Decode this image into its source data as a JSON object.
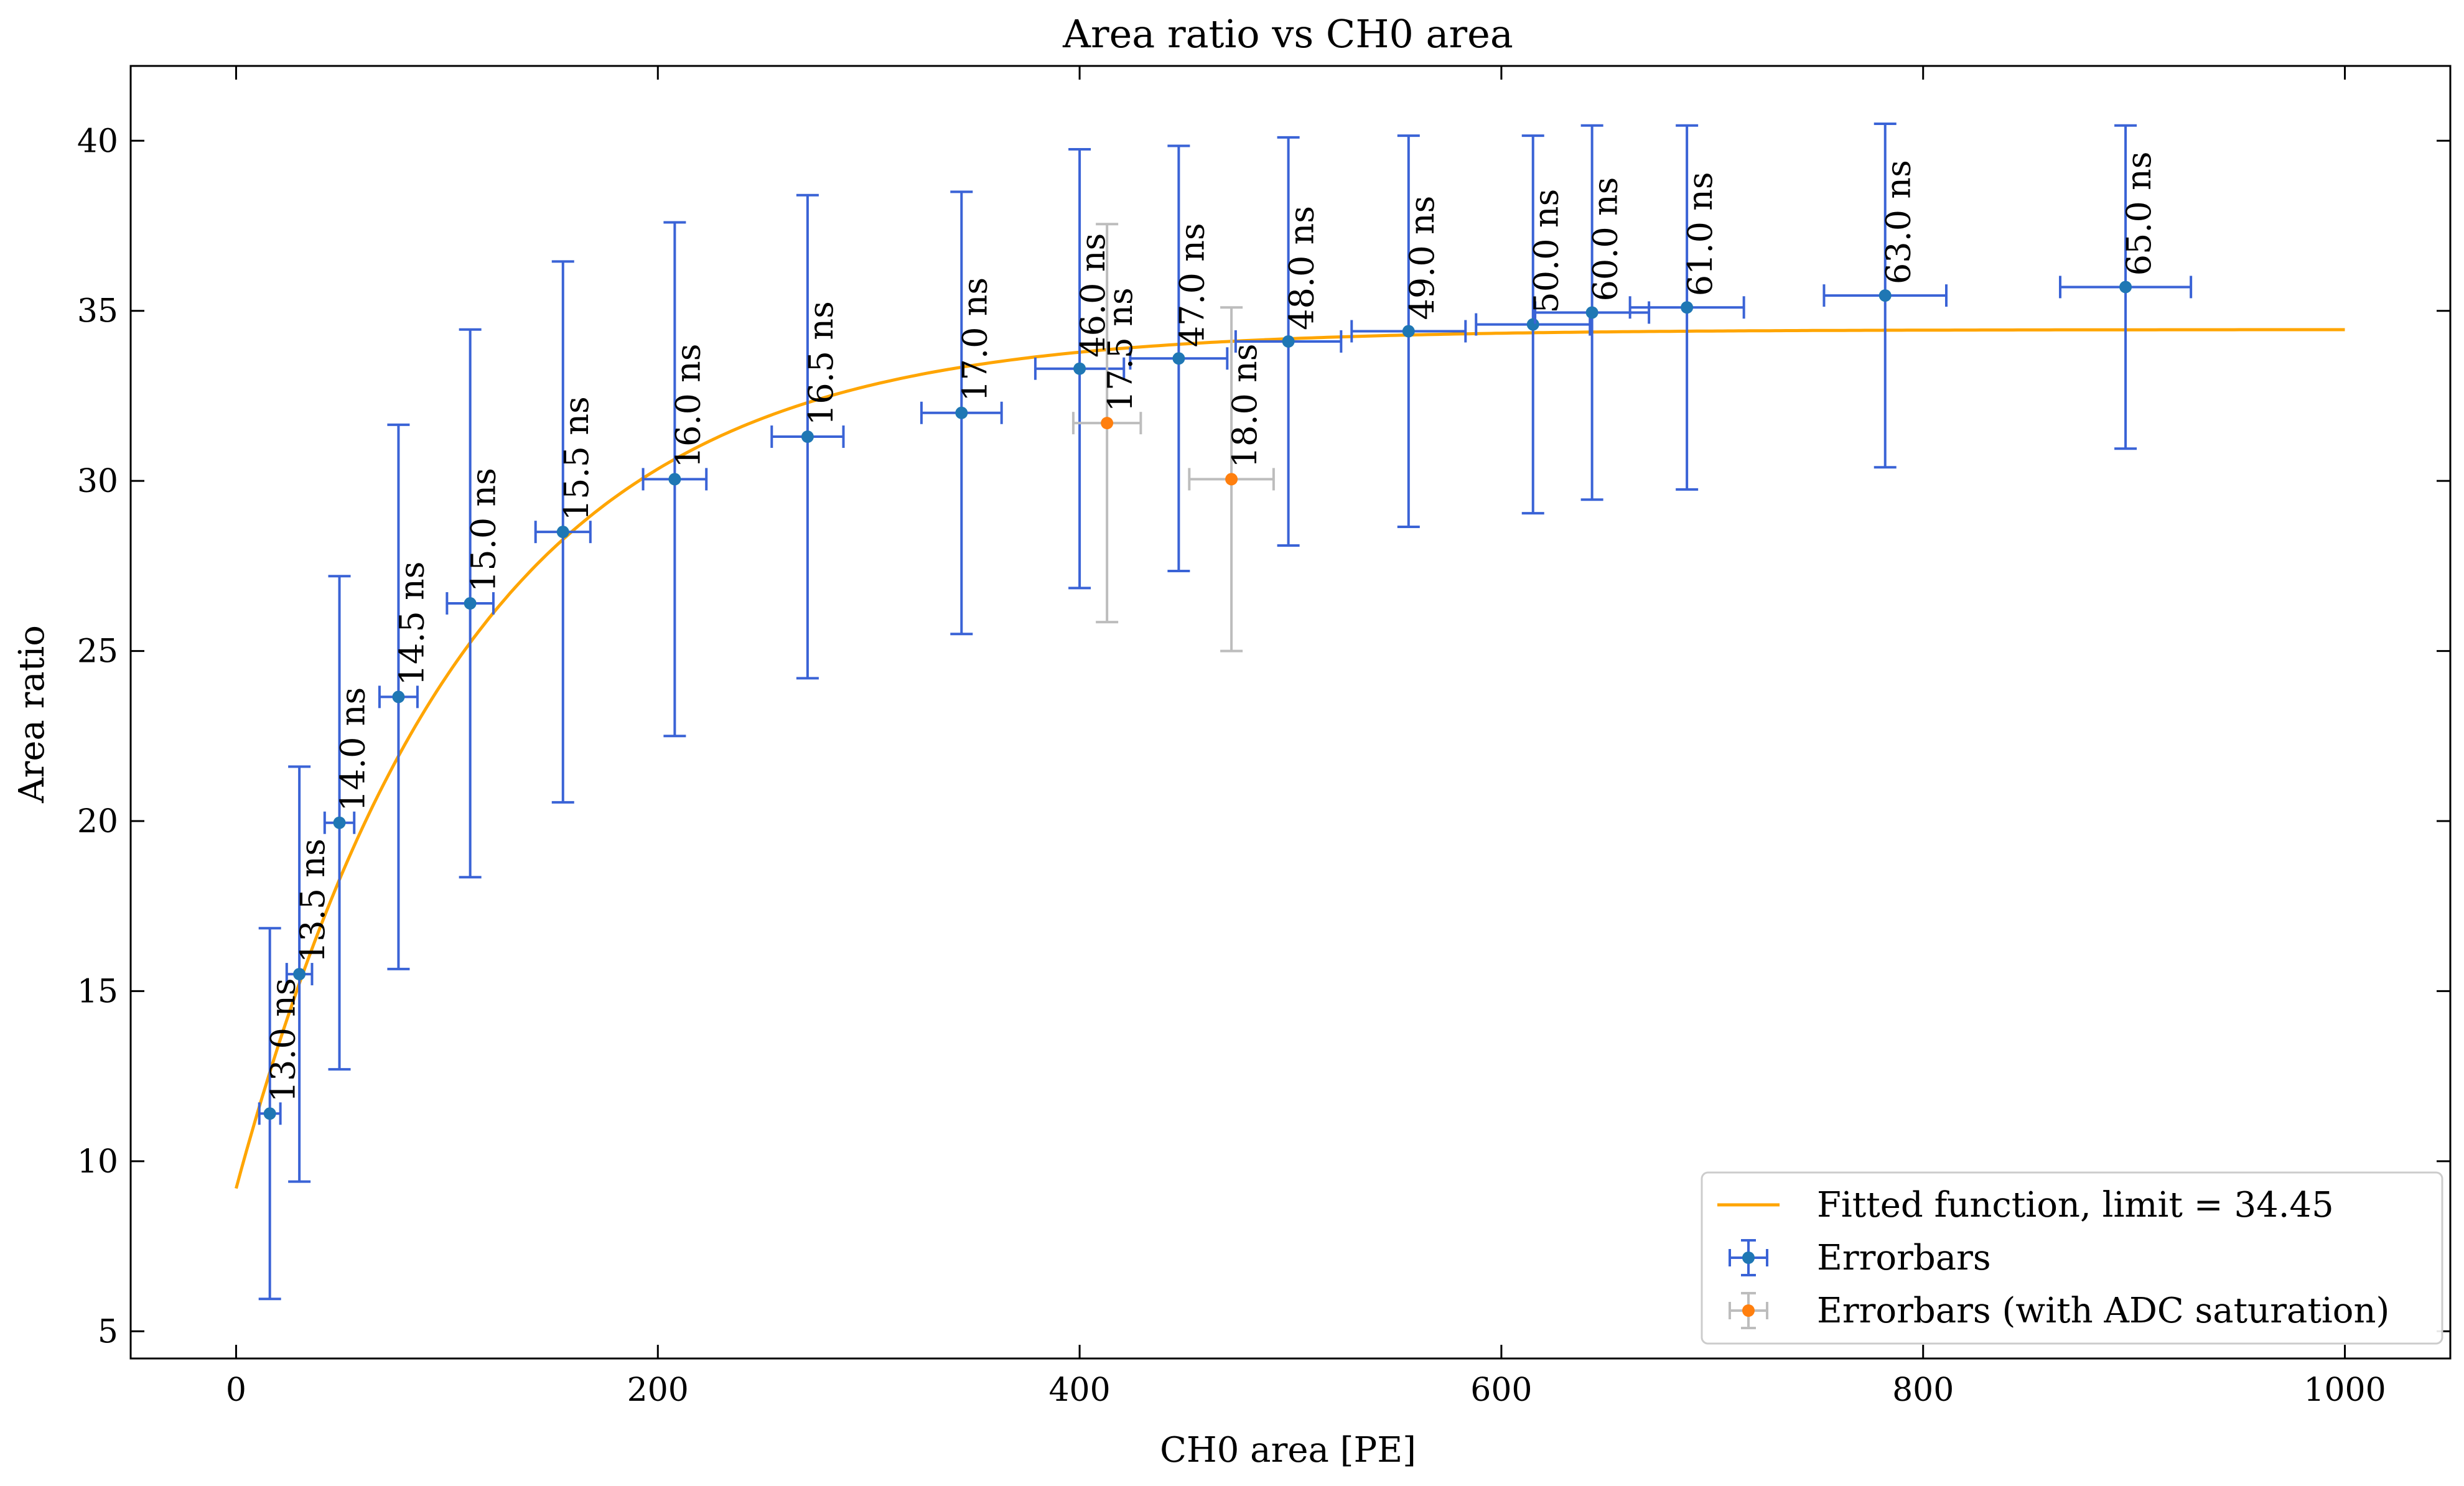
{
  "chart_data": {
    "type": "scatter",
    "title": "Area ratio vs CH0 area",
    "xlabel": "CH0 area [PE]",
    "ylabel": "Area ratio",
    "xlim": [
      -50,
      1050
    ],
    "ylim": [
      4.2,
      42.2
    ],
    "xticks": [
      0,
      200,
      400,
      600,
      800,
      1000
    ],
    "yticks": [
      5,
      10,
      15,
      20,
      25,
      30,
      35,
      40
    ],
    "grid": false,
    "legend_position": "bottom-right",
    "colors": {
      "errorbar": "#3a63d6",
      "marker": "#1f77b4",
      "saturated_errorbar": "#bdbdbd",
      "saturated_marker": "#ff7f0e",
      "fit": "#ffa500"
    },
    "series": [
      {
        "name": "Errorbars",
        "kind": "errorbar",
        "points": [
          {
            "x": 16,
            "y": 11.4,
            "xerr": 5,
            "yerr": 5.45,
            "label": "13.0 ns"
          },
          {
            "x": 30,
            "y": 15.5,
            "xerr": 6,
            "yerr": 6.1,
            "label": "13.5 ns"
          },
          {
            "x": 49,
            "y": 19.95,
            "xerr": 7,
            "yerr": 7.25,
            "label": "14.0 ns"
          },
          {
            "x": 77,
            "y": 23.65,
            "xerr": 9,
            "yerr": 8.0,
            "label": "14.5 ns"
          },
          {
            "x": 111,
            "y": 26.4,
            "xerr": 11,
            "yerr": 8.05,
            "label": "15.0 ns"
          },
          {
            "x": 155,
            "y": 28.5,
            "xerr": 13,
            "yerr": 7.95,
            "label": "15.5 ns"
          },
          {
            "x": 208,
            "y": 30.05,
            "xerr": 15,
            "yerr": 7.55,
            "label": "16.0 ns"
          },
          {
            "x": 271,
            "y": 31.3,
            "xerr": 17,
            "yerr": 7.1,
            "label": "16.5 ns"
          },
          {
            "x": 344,
            "y": 32.0,
            "xerr": 19,
            "yerr": 6.5,
            "label": "17.0 ns"
          },
          {
            "x": 400,
            "y": 33.3,
            "xerr": 21,
            "yerr": 6.45,
            "label": "46.0 ns"
          },
          {
            "x": 447,
            "y": 33.6,
            "xerr": 23,
            "yerr": 6.25,
            "label": "47.0 ns"
          },
          {
            "x": 499,
            "y": 34.1,
            "xerr": 25,
            "yerr": 6.0,
            "label": "48.0 ns"
          },
          {
            "x": 556,
            "y": 34.4,
            "xerr": 27,
            "yerr": 5.75,
            "label": "49.0 ns"
          },
          {
            "x": 615,
            "y": 34.6,
            "xerr": 27,
            "yerr": 5.55,
            "label": "50.0 ns"
          },
          {
            "x": 643,
            "y": 34.95,
            "xerr": 27,
            "yerr": 5.5,
            "label": "60.0 ns"
          },
          {
            "x": 688,
            "y": 35.1,
            "xerr": 27,
            "yerr": 5.35,
            "label": "61.0 ns"
          },
          {
            "x": 782,
            "y": 35.45,
            "xerr": 29,
            "yerr": 5.05,
            "label": "63.0 ns"
          },
          {
            "x": 896,
            "y": 35.7,
            "xerr": 31,
            "yerr": 4.75,
            "label": "65.0 ns"
          }
        ]
      },
      {
        "name": "Errorbars (with ADC saturation)",
        "kind": "errorbar",
        "points": [
          {
            "x": 413,
            "y": 31.7,
            "xerr": 16,
            "yerr": 5.85,
            "label": "17.5 ns"
          },
          {
            "x": 472,
            "y": 30.05,
            "xerr": 20,
            "yerr": 5.05,
            "label": "18.0 ns"
          }
        ]
      },
      {
        "name": "Fitted function, limit = 34.45",
        "kind": "line",
        "model": "y = limit - (limit - y0) * exp(-x / tau)",
        "params": {
          "limit": 34.45,
          "y0": 9.2,
          "tau": 110
        },
        "x_range": [
          0,
          1000
        ]
      }
    ]
  }
}
